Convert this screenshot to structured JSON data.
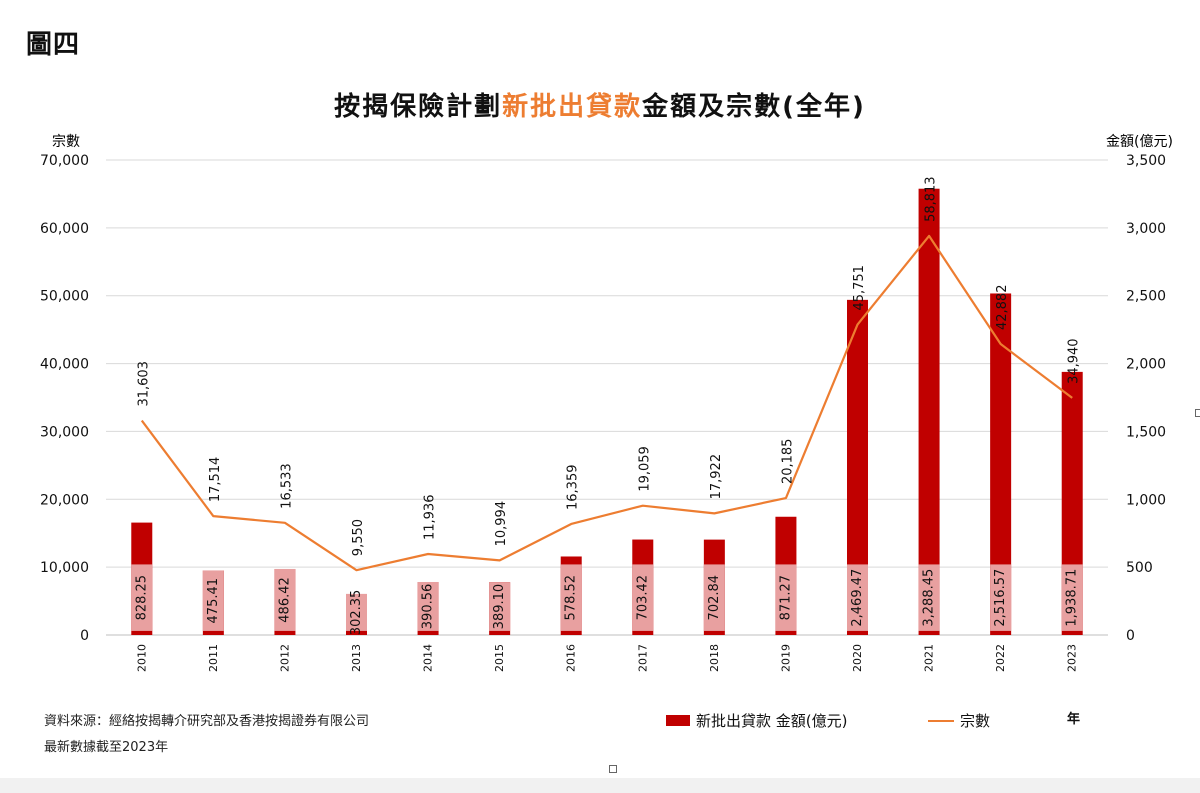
{
  "figure_label": "圖四",
  "title": {
    "part1": "按揭保險計劃",
    "highlight": "新批出貸款",
    "part2": "金額及宗數(全年)"
  },
  "source_note": "資料來源：經絡按揭轉介研究部及香港按揭證券有限公司",
  "date_note": "最新數據截至2023年",
  "colors": {
    "bar": "#C00000",
    "bar_label_bg": "#E8A0A0",
    "line": "#ED7D31",
    "grid": "#D9D9D9",
    "title_highlight": "#ED7D31"
  },
  "chart_data": {
    "type": "bar+line",
    "categories": [
      "2010",
      "2011",
      "2012",
      "2013",
      "2014",
      "2015",
      "2016",
      "2017",
      "2018",
      "2019",
      "2020",
      "2021",
      "2022",
      "2023"
    ],
    "x_unit_label": "年",
    "left_axis": {
      "label": "宗數",
      "min": 0,
      "max": 70000,
      "step": 10000,
      "tick_labels": [
        "0",
        "10,000",
        "20,000",
        "30,000",
        "40,000",
        "50,000",
        "60,000",
        "70,000"
      ]
    },
    "right_axis": {
      "label": "金額(億元)",
      "min": 0,
      "max": 3500,
      "step": 500,
      "tick_labels": [
        "0",
        "500",
        "1,000",
        "1,500",
        "2,000",
        "2,500",
        "3,000",
        "3,500"
      ]
    },
    "grid": true,
    "legend_position": "bottom",
    "series": [
      {
        "name": "新批出貸款 金額(億元)",
        "type": "bar",
        "axis": "right",
        "values": [
          828.25,
          475.41,
          486.42,
          302.35,
          390.56,
          389.1,
          578.52,
          703.42,
          702.84,
          871.27,
          2469.47,
          3288.45,
          2516.57,
          1938.71
        ],
        "labels": [
          "828.25",
          "475.41",
          "486.42",
          "302.35",
          "390.56",
          "389.10",
          "578.52",
          "703.42",
          "702.84",
          "871.27",
          "2,469.47",
          "3,288.45",
          "2,516.57",
          "1,938.71"
        ]
      },
      {
        "name": "宗數",
        "type": "line",
        "axis": "left",
        "values": [
          31603,
          17514,
          16533,
          9550,
          11936,
          10994,
          16359,
          19059,
          17922,
          20185,
          45751,
          58813,
          42882,
          34940
        ],
        "labels": [
          "31,603",
          "17,514",
          "16,533",
          "9,550",
          "11,936",
          "10,994",
          "16,359",
          "19,059",
          "17,922",
          "20,185",
          "45,751",
          "58,813",
          "42,882",
          "34,940"
        ]
      }
    ]
  }
}
